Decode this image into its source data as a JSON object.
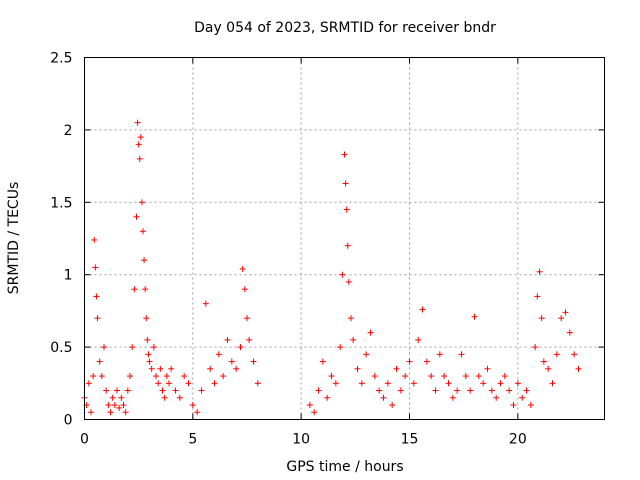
{
  "chart_data": {
    "type": "scatter",
    "title": "Day 054 of 2023, SRMTID for receiver bndr",
    "xlabel": "GPS time / hours",
    "ylabel": "SRMTID / TECUs",
    "xlim": [
      0,
      24
    ],
    "ylim": [
      0,
      2.5
    ],
    "xticks": [
      0,
      5,
      10,
      15,
      20
    ],
    "xtick_labels": [
      "0",
      "5",
      "10",
      "15",
      "20"
    ],
    "yticks": [
      0,
      0.5,
      1,
      1.5,
      2,
      2.5
    ],
    "ytick_labels": [
      "0",
      "0.5",
      "1",
      "1.5",
      "2",
      "2.5"
    ],
    "grid": true,
    "marker": "+",
    "color": "#ff0000",
    "series": [
      {
        "name": "SRMTID",
        "x": [
          0.0,
          0.1,
          0.2,
          0.3,
          0.4,
          0.45,
          0.5,
          0.55,
          0.6,
          0.7,
          0.8,
          0.9,
          1.0,
          1.1,
          1.2,
          1.3,
          1.4,
          1.5,
          1.6,
          1.7,
          1.8,
          1.9,
          2.0,
          2.1,
          2.2,
          2.3,
          2.4,
          2.45,
          2.5,
          2.55,
          2.6,
          2.65,
          2.7,
          2.75,
          2.8,
          2.85,
          2.9,
          2.95,
          3.0,
          3.1,
          3.2,
          3.3,
          3.4,
          3.5,
          3.6,
          3.7,
          3.8,
          3.9,
          4.0,
          4.2,
          4.4,
          4.6,
          4.8,
          5.0,
          5.2,
          5.4,
          5.6,
          5.8,
          6.0,
          6.2,
          6.4,
          6.6,
          6.8,
          7.0,
          7.2,
          7.3,
          7.4,
          7.5,
          7.6,
          7.8,
          8.0,
          10.4,
          10.6,
          10.8,
          11.0,
          11.2,
          11.4,
          11.6,
          11.8,
          11.9,
          12.0,
          12.05,
          12.1,
          12.15,
          12.2,
          12.3,
          12.4,
          12.6,
          12.8,
          13.0,
          13.2,
          13.4,
          13.6,
          13.8,
          14.0,
          14.2,
          14.4,
          14.6,
          14.8,
          15.0,
          15.2,
          15.4,
          15.6,
          15.8,
          16.0,
          16.2,
          16.4,
          16.6,
          16.8,
          17.0,
          17.2,
          17.4,
          17.6,
          17.8,
          18.0,
          18.2,
          18.4,
          18.6,
          18.8,
          19.0,
          19.2,
          19.4,
          19.6,
          19.8,
          20.0,
          20.2,
          20.4,
          20.6,
          20.8,
          20.9,
          21.0,
          21.1,
          21.2,
          21.4,
          21.6,
          21.8,
          22.0,
          22.2,
          22.4,
          22.6,
          22.8
        ],
        "y": [
          0.15,
          0.1,
          0.25,
          0.05,
          0.3,
          1.24,
          1.05,
          0.85,
          0.7,
          0.4,
          0.3,
          0.5,
          0.2,
          0.1,
          0.05,
          0.15,
          0.1,
          0.2,
          0.08,
          0.15,
          0.1,
          0.05,
          0.2,
          0.3,
          0.5,
          0.9,
          1.4,
          2.05,
          1.9,
          1.8,
          1.95,
          1.5,
          1.3,
          1.1,
          0.9,
          0.7,
          0.55,
          0.45,
          0.4,
          0.35,
          0.5,
          0.3,
          0.25,
          0.35,
          0.2,
          0.15,
          0.3,
          0.25,
          0.35,
          0.2,
          0.15,
          0.3,
          0.25,
          0.1,
          0.05,
          0.2,
          0.8,
          0.35,
          0.25,
          0.45,
          0.3,
          0.55,
          0.4,
          0.35,
          0.5,
          1.04,
          0.9,
          0.7,
          0.55,
          0.4,
          0.25,
          0.1,
          0.05,
          0.2,
          0.4,
          0.15,
          0.3,
          0.25,
          0.5,
          1.0,
          1.83,
          1.63,
          1.45,
          1.2,
          0.95,
          0.7,
          0.55,
          0.35,
          0.25,
          0.45,
          0.6,
          0.3,
          0.2,
          0.15,
          0.25,
          0.1,
          0.35,
          0.2,
          0.3,
          0.4,
          0.25,
          0.55,
          0.76,
          0.4,
          0.3,
          0.2,
          0.45,
          0.3,
          0.25,
          0.15,
          0.2,
          0.45,
          0.3,
          0.2,
          0.71,
          0.3,
          0.25,
          0.35,
          0.2,
          0.15,
          0.25,
          0.3,
          0.2,
          0.1,
          0.25,
          0.15,
          0.2,
          0.1,
          0.5,
          0.85,
          1.02,
          0.7,
          0.4,
          0.35,
          0.25,
          0.45,
          0.7,
          0.74,
          0.6,
          0.45,
          0.35
        ]
      }
    ]
  }
}
